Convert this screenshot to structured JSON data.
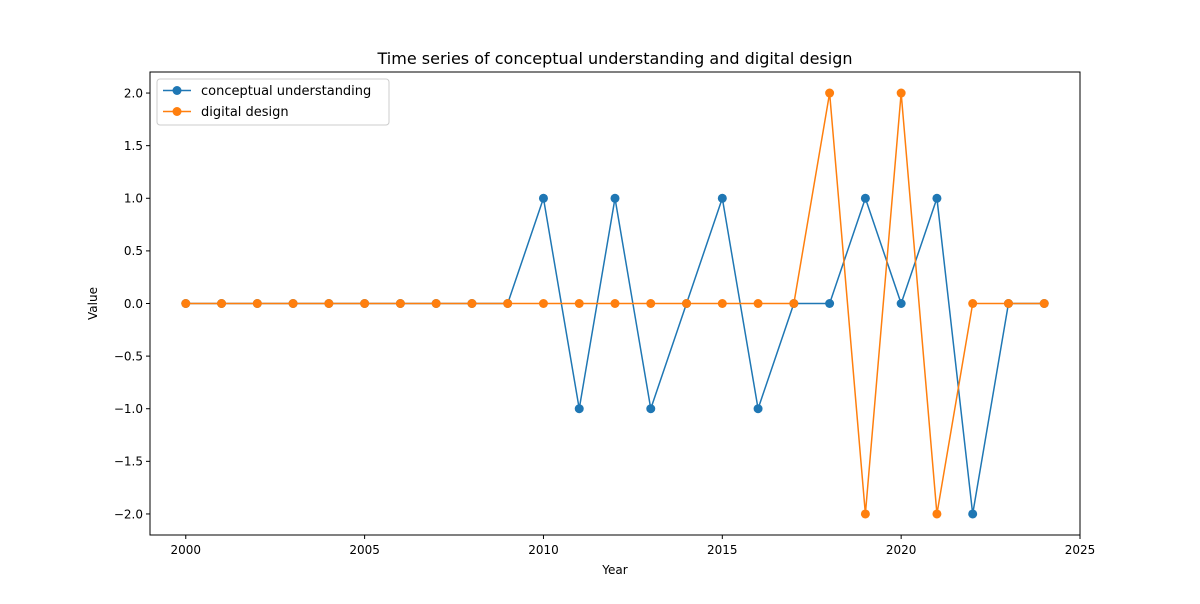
{
  "chart_data": {
    "type": "line",
    "title": "Time series of conceptual understanding and digital design",
    "xlabel": "Year",
    "ylabel": "Value",
    "xlim": [
      1999.0,
      2025.0
    ],
    "ylim": [
      -2.2,
      2.2
    ],
    "xticks": [
      2000,
      2005,
      2010,
      2015,
      2020,
      2025
    ],
    "xtick_labels": [
      "2000",
      "2005",
      "2010",
      "2015",
      "2020",
      "2025"
    ],
    "yticks": [
      -2.0,
      -1.5,
      -1.0,
      -0.5,
      0.0,
      0.5,
      1.0,
      1.5,
      2.0
    ],
    "ytick_labels": [
      "−2.0",
      "−1.5",
      "−1.0",
      "−0.5",
      "0.0",
      "0.5",
      "1.0",
      "1.5",
      "2.0"
    ],
    "grid": false,
    "legend_position": "top-left",
    "x": [
      2000,
      2001,
      2002,
      2003,
      2004,
      2005,
      2006,
      2007,
      2008,
      2009,
      2010,
      2011,
      2012,
      2013,
      2014,
      2015,
      2016,
      2017,
      2018,
      2019,
      2020,
      2021,
      2022,
      2023,
      2024
    ],
    "series": [
      {
        "name": "conceptual understanding",
        "color": "#1f77b4",
        "marker": "circle",
        "values": [
          0,
          0,
          0,
          0,
          0,
          0,
          0,
          0,
          0,
          0,
          1,
          -1,
          1,
          -1,
          0,
          1,
          -1,
          0,
          0,
          1,
          0,
          1,
          -2,
          0,
          0
        ]
      },
      {
        "name": "digital design",
        "color": "#ff7f0e",
        "marker": "circle",
        "values": [
          0,
          0,
          0,
          0,
          0,
          0,
          0,
          0,
          0,
          0,
          0,
          0,
          0,
          0,
          0,
          0,
          0,
          0,
          2,
          -2,
          2,
          -2,
          0,
          0,
          0
        ]
      }
    ]
  }
}
